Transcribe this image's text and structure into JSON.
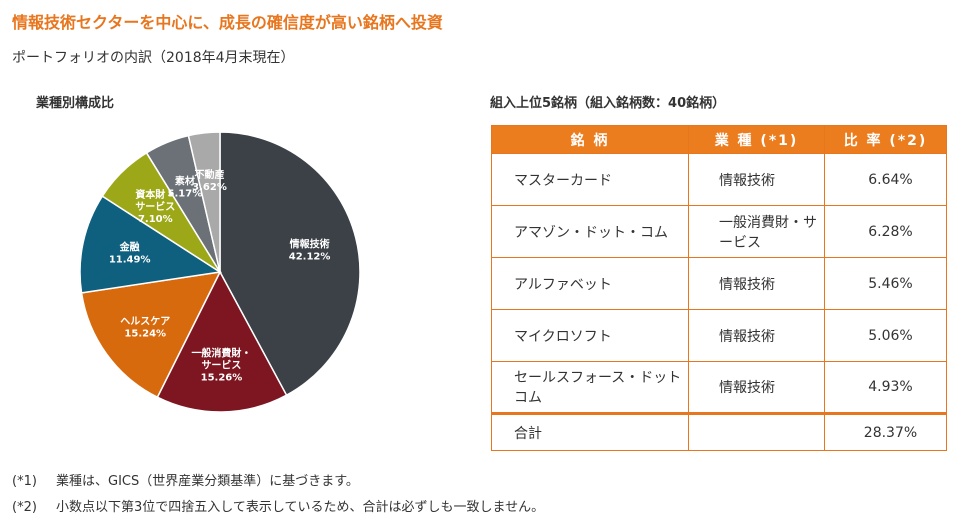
{
  "header": {
    "title": "情報技術セクターを中心に、成長の確信度が高い銘柄へ投資",
    "subtitle": "ポートフォリオの内訳（2018年4月末現在）"
  },
  "chart_data": {
    "type": "pie",
    "title": "業種別構成比",
    "slices": [
      {
        "label": "情報技術",
        "value": 42.12,
        "value_label": "42.12%",
        "color": "#3b4147"
      },
      {
        "label": "一般消費財・サービス",
        "label_lines": [
          "一般消費財・",
          "サービス"
        ],
        "value": 15.26,
        "value_label": "15.26%",
        "color": "#7d1620"
      },
      {
        "label": "ヘルスケア",
        "value": 15.24,
        "value_label": "15.24%",
        "color": "#d86a0e"
      },
      {
        "label": "金融",
        "value": 11.49,
        "value_label": "11.49%",
        "color": "#0f5f7e"
      },
      {
        "label": "資本財・サービス",
        "label_lines": [
          "資本財・",
          "サービス"
        ],
        "value": 7.1,
        "value_label": "7.10%",
        "color": "#9da818"
      },
      {
        "label": "素材",
        "value": 5.17,
        "value_label": "5.17%",
        "color": "#6b7177"
      },
      {
        "label": "不動産",
        "value": 3.62,
        "value_label": "3.62%",
        "color": "#a9a9a9"
      }
    ]
  },
  "table": {
    "title": "組入上位5銘柄（組入銘柄数：40銘柄）",
    "headers": {
      "name": "銘 柄",
      "sector": "業 種 (*1)",
      "weight": "比 率 (*2)"
    },
    "rows": [
      {
        "name": "マスターカード",
        "sector": "情報技術",
        "weight": "6.64%"
      },
      {
        "name": "アマゾン・ドット・コム",
        "sector": "一般消費財・サービス",
        "weight": "6.28%"
      },
      {
        "name": "アルファベット",
        "sector": "情報技術",
        "weight": "5.46%"
      },
      {
        "name": "マイクロソフト",
        "sector": "情報技術",
        "weight": "5.06%"
      },
      {
        "name": "セールスフォース・ドットコム",
        "sector": "情報技術",
        "weight": "4.93%"
      }
    ],
    "total": {
      "label": "合計",
      "weight": "28.37%"
    }
  },
  "notes": [
    {
      "mark": "(*1)",
      "text": "業種は、GICS（世界産業分類基準）に基づきます。"
    },
    {
      "mark": "(*2)",
      "text": "小数点以下第3位で四捨五入して表示しているため、合計は必ずしも一致しません。"
    }
  ]
}
